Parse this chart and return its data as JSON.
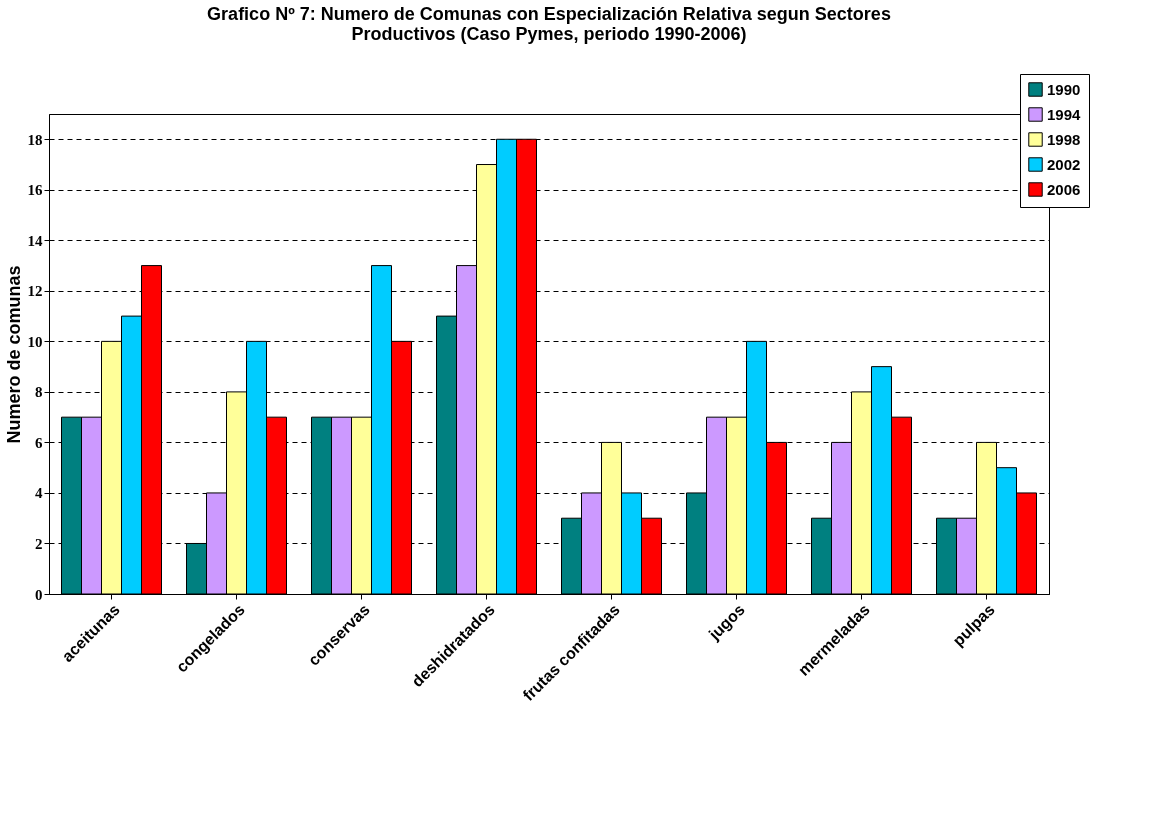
{
  "chart_data": {
    "type": "bar",
    "title": [
      "Grafico Nº 7: Numero de Comunas con Especialización Relativa segun Sectores",
      "Productivos (Caso Pymes, periodo 1990-2006)"
    ],
    "ylabel": "Numero de comunas",
    "categories": [
      "aceitunas",
      "congelados",
      "conservas",
      "deshidratados",
      "frutas confitadas",
      "jugos",
      "mermeladas",
      "pulpas"
    ],
    "series": [
      {
        "name": "1990",
        "color": "#008080",
        "values": [
          7,
          2,
          7,
          11,
          3,
          4,
          3,
          3
        ]
      },
      {
        "name": "1994",
        "color": "#cc99ff",
        "values": [
          7,
          4,
          7,
          13,
          4,
          7,
          6,
          3
        ]
      },
      {
        "name": "1998",
        "color": "#ffff99",
        "values": [
          10,
          8,
          7,
          17,
          6,
          7,
          8,
          6
        ]
      },
      {
        "name": "2002",
        "color": "#00ccff",
        "values": [
          11,
          10,
          13,
          18,
          4,
          10,
          9,
          5
        ]
      },
      {
        "name": "2006",
        "color": "#ff0000",
        "values": [
          13,
          7,
          10,
          18,
          3,
          6,
          7,
          4
        ]
      }
    ],
    "ylim": [
      0,
      19
    ],
    "yticks": [
      0,
      2,
      4,
      6,
      8,
      10,
      12,
      14,
      16,
      18
    ],
    "grid": "y",
    "legend": "top right"
  }
}
